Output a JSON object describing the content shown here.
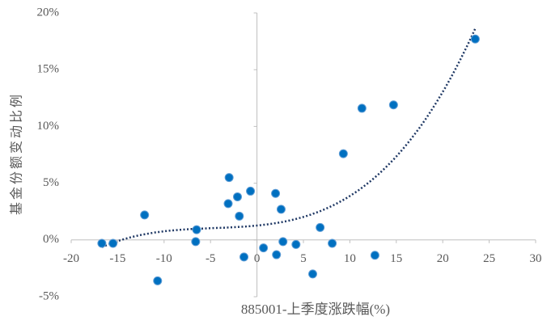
{
  "chart_data": {
    "type": "scatter",
    "x_label": "885001-上季度涨跌幅(%)",
    "y_label": "基金份额变动比例",
    "x": [
      -16.7,
      -15.5,
      -12.1,
      -10.7,
      -6.5,
      -6.6,
      -3.0,
      -3.1,
      -2.1,
      -1.9,
      -1.4,
      -0.7,
      0.7,
      2.0,
      2.6,
      2.1,
      2.8,
      4.2,
      6.0,
      6.8,
      8.1,
      9.3,
      11.3,
      12.7,
      14.7,
      23.5
    ],
    "y": [
      -0.3,
      -0.3,
      2.2,
      -3.6,
      0.9,
      -0.15,
      5.5,
      3.2,
      3.8,
      2.1,
      -1.5,
      4.3,
      -0.7,
      4.1,
      2.7,
      -1.3,
      -0.15,
      -0.4,
      -3.0,
      1.1,
      -0.3,
      7.6,
      11.6,
      -1.35,
      11.9,
      17.7
    ],
    "color": "#0070c0",
    "trendline": {
      "kind": "polynomial",
      "order": 3,
      "color": "#1f3864"
    },
    "xlim": [
      -20,
      30
    ],
    "xticks": [
      -20,
      -15,
      -10,
      -5,
      0,
      5,
      10,
      15,
      20,
      25,
      30
    ],
    "ylim": [
      -5,
      20
    ],
    "yticks": [
      {
        "value": -5,
        "label": "-5%"
      },
      {
        "value": 0,
        "label": "0%"
      },
      {
        "value": 5,
        "label": "5%"
      },
      {
        "value": 10,
        "label": "10%"
      },
      {
        "value": 15,
        "label": "15%"
      },
      {
        "value": 20,
        "label": "20%"
      }
    ],
    "grid": false
  }
}
